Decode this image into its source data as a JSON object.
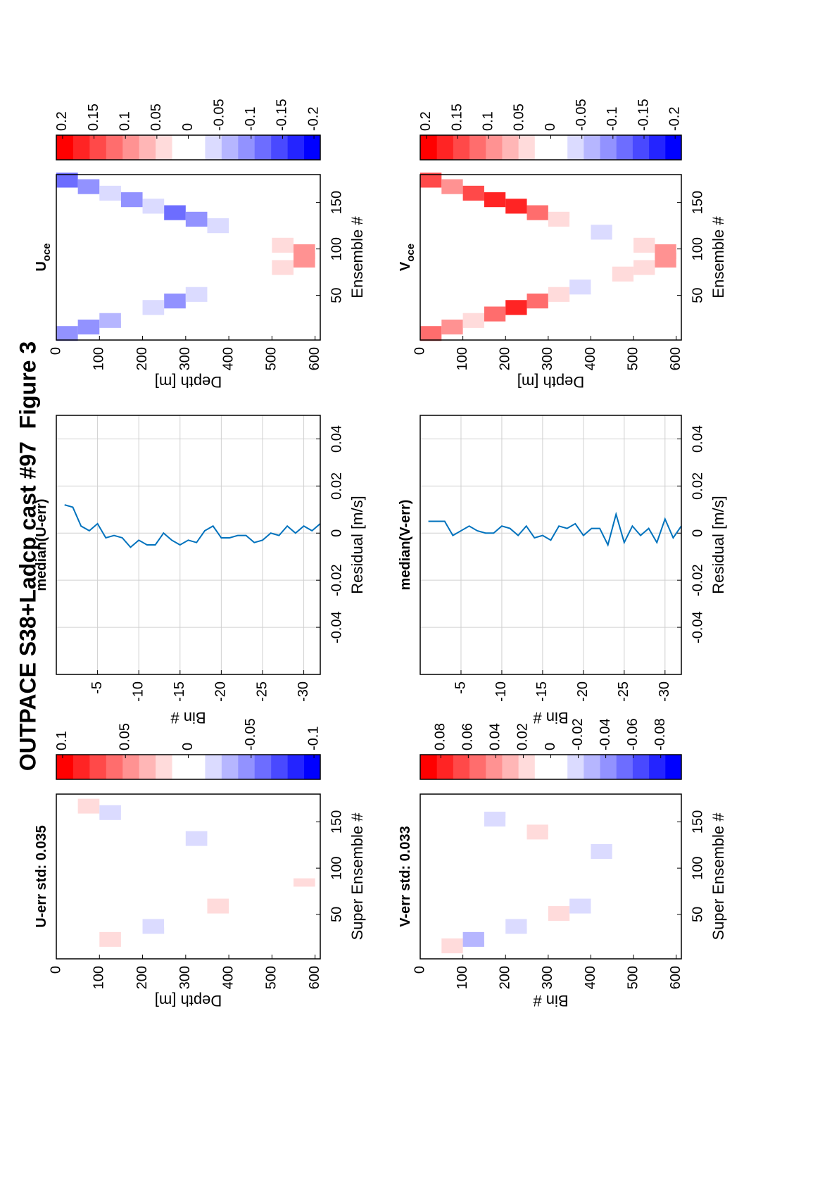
{
  "figure_title": "OUTPACE S38+Ladcp cast #97  Figure 3",
  "chart_data": [
    {
      "type": "heatmap",
      "title": "U-err std: 0.035",
      "xlabel": "Super Ensemble #",
      "ylabel": "Depth [m]",
      "y_edges": [
        0,
        50,
        100,
        150,
        200,
        250,
        300,
        350,
        400,
        450,
        500,
        550,
        600
      ],
      "x_down": [
        9,
        16,
        23,
        30,
        37,
        44,
        51,
        59,
        66,
        73,
        80,
        88
      ],
      "x_up": [
        174,
        167,
        160,
        153,
        146,
        139,
        132,
        125,
        118,
        111,
        104,
        97
      ],
      "down_values": [
        0.01,
        -0.01,
        0.02,
        0.0,
        -0.02,
        0.01,
        -0.01,
        0.02,
        0.0,
        0.01,
        -0.01,
        0.02
      ],
      "up_values": [
        -0.01,
        0.02,
        -0.02,
        0.0,
        -0.01,
        0.01,
        -0.02,
        0.0,
        0.01,
        -0.01,
        0.0,
        0.01
      ],
      "xlim": [
        2,
        180
      ],
      "ylim": [
        0,
        612
      ],
      "ydir": "reverse",
      "xticks": [
        50,
        100,
        150
      ],
      "yticks": [
        0,
        100,
        200,
        300,
        400,
        500,
        600
      ],
      "clim": [
        -0.105,
        0.105
      ],
      "cticks": [
        0.1,
        0.05,
        0,
        -0.05,
        -0.1
      ],
      "colormap": [
        "#0000ff",
        "#ffffff",
        "#ff0000"
      ],
      "levels": 16
    },
    {
      "type": "line",
      "title": "median(U-err)",
      "xlabel": "Residual [m/s]",
      "ylabel": "Bin #",
      "color": "#0072bd",
      "y": [
        -1,
        -2,
        -3,
        -4,
        -5,
        -6,
        -7,
        -8,
        -9,
        -10,
        -11,
        -12,
        -13,
        -14,
        -15,
        -16,
        -17,
        -18,
        -19,
        -20,
        -21,
        -22,
        -23,
        -24,
        -25,
        -26,
        -27,
        -28,
        -29,
        -30,
        -31,
        -32
      ],
      "values": [
        0.012,
        0.011,
        0.003,
        0.001,
        0.004,
        -0.002,
        -0.001,
        -0.002,
        -0.006,
        -0.003,
        -0.005,
        -0.005,
        0.0,
        -0.003,
        -0.005,
        -0.003,
        -0.004,
        0.001,
        0.003,
        -0.002,
        -0.002,
        -0.001,
        -0.001,
        -0.004,
        -0.003,
        0.0,
        -0.001,
        0.003,
        0.0,
        0.003,
        0.001,
        0.004
      ],
      "xlim": [
        -0.06,
        0.05
      ],
      "ylim": [
        -32,
        0
      ],
      "xticks": [
        -0.04,
        -0.02,
        0,
        0.02,
        0.04
      ],
      "yticks": [
        -5,
        -10,
        -15,
        -20,
        -25,
        -30
      ],
      "grid": true
    },
    {
      "type": "heatmap",
      "title": "U",
      "title_sub": "oce",
      "xlabel": "Ensemble #",
      "ylabel": "Depth [m]",
      "y_edges": [
        0,
        50,
        100,
        150,
        200,
        250,
        300,
        350,
        400,
        450,
        500,
        550,
        600
      ],
      "x_down": [
        9,
        16,
        23,
        30,
        37,
        44,
        51,
        59,
        66,
        73,
        80,
        88
      ],
      "x_up": [
        174,
        167,
        160,
        153,
        146,
        139,
        132,
        125,
        118,
        111,
        104,
        97
      ],
      "down_values": [
        -0.1,
        -0.08,
        -0.06,
        0.0,
        -0.03,
        -0.08,
        -0.05,
        -0.02,
        0.0,
        0.02,
        0.05,
        0.1
      ],
      "up_values": [
        -0.12,
        -0.08,
        -0.05,
        -0.08,
        -0.03,
        -0.12,
        -0.1,
        -0.05,
        -0.02,
        0.0,
        0.03,
        0.1
      ],
      "xlim": [
        2,
        180
      ],
      "ylim": [
        0,
        612
      ],
      "ydir": "reverse",
      "xticks": [
        50,
        100,
        150
      ],
      "yticks": [
        0,
        100,
        200,
        300,
        400,
        500,
        600
      ],
      "clim": [
        -0.21,
        0.21
      ],
      "cticks": [
        0.2,
        0.15,
        0.1,
        0.05,
        0,
        -0.05,
        -0.1,
        -0.15,
        -0.2
      ],
      "colormap": [
        "#0000ff",
        "#ffffff",
        "#ff0000"
      ],
      "levels": 16
    },
    {
      "type": "heatmap",
      "title": "V-err std: 0.033",
      "xlabel": "Super Ensemble #",
      "ylabel": "Bin #",
      "y_edges": [
        0,
        50,
        100,
        150,
        200,
        250,
        300,
        350,
        400,
        450,
        500,
        550,
        600
      ],
      "x_down": [
        9,
        16,
        23,
        30,
        37,
        44,
        51,
        59,
        66,
        73,
        80,
        88
      ],
      "x_up": [
        174,
        167,
        160,
        153,
        146,
        139,
        132,
        125,
        118,
        111,
        104,
        97
      ],
      "down_values": [
        0.01,
        0.02,
        -0.03,
        0.01,
        -0.02,
        -0.01,
        0.02,
        -0.02,
        0.0,
        -0.01,
        0.01,
        0.0
      ],
      "up_values": [
        -0.01,
        0.0,
        0.01,
        -0.02,
        -0.01,
        0.02,
        0.0,
        -0.01,
        -0.02,
        0.01,
        0.0,
        -0.01
      ],
      "xlim": [
        2,
        180
      ],
      "ylim": [
        0,
        612
      ],
      "ydir": "reverse",
      "xticks": [
        50,
        100,
        150
      ],
      "yticks": [
        0,
        100,
        200,
        300,
        400,
        500,
        600
      ],
      "clim": [
        -0.095,
        0.095
      ],
      "cticks": [
        0.08,
        0.06,
        0.04,
        0.02,
        0,
        -0.02,
        -0.04,
        -0.06,
        -0.08
      ],
      "colormap": [
        "#0000ff",
        "#ffffff",
        "#ff0000"
      ],
      "levels": 16
    },
    {
      "type": "line",
      "title": "median(V-err)",
      "xlabel": "Residual [m/s]",
      "ylabel": "Bin #",
      "color": "#0072bd",
      "y": [
        -1,
        -2,
        -3,
        -4,
        -5,
        -6,
        -7,
        -8,
        -9,
        -10,
        -11,
        -12,
        -13,
        -14,
        -15,
        -16,
        -17,
        -18,
        -19,
        -20,
        -21,
        -22,
        -23,
        -24,
        -25,
        -26,
        -27,
        -28,
        -29,
        -30,
        -31,
        -32
      ],
      "values": [
        0.005,
        0.005,
        0.005,
        -0.001,
        0.001,
        0.003,
        0.001,
        0.0,
        0.0,
        0.003,
        0.002,
        -0.001,
        0.003,
        -0.002,
        -0.001,
        -0.003,
        0.003,
        0.002,
        0.004,
        -0.001,
        0.002,
        0.002,
        -0.005,
        0.008,
        -0.004,
        0.003,
        -0.001,
        0.002,
        -0.004,
        0.006,
        -0.002,
        0.003
      ],
      "xlim": [
        -0.06,
        0.05
      ],
      "ylim": [
        -32,
        0
      ],
      "xticks": [
        -0.04,
        -0.02,
        0,
        0.02,
        0.04
      ],
      "yticks": [
        -5,
        -10,
        -15,
        -20,
        -25,
        -30
      ],
      "grid": true
    },
    {
      "type": "heatmap",
      "title": "V",
      "title_sub": "oce",
      "xlabel": "Ensemble #",
      "ylabel": "Depth [m]",
      "y_edges": [
        0,
        50,
        100,
        150,
        200,
        250,
        300,
        350,
        400,
        450,
        500,
        550,
        600
      ],
      "x_down": [
        9,
        16,
        23,
        30,
        37,
        44,
        51,
        59,
        66,
        73,
        80,
        88
      ],
      "x_up": [
        174,
        167,
        160,
        153,
        146,
        139,
        132,
        125,
        118,
        111,
        104,
        97
      ],
      "down_values": [
        0.12,
        0.1,
        0.05,
        0.13,
        0.17,
        0.12,
        0.03,
        -0.03,
        -0.02,
        0.03,
        0.05,
        0.08
      ],
      "up_values": [
        0.15,
        0.1,
        0.15,
        0.18,
        0.17,
        0.12,
        0.05,
        -0.02,
        -0.04,
        0.02,
        0.05,
        0.1
      ],
      "xlim": [
        2,
        180
      ],
      "ylim": [
        0,
        612
      ],
      "ydir": "reverse",
      "xticks": [
        50,
        100,
        150
      ],
      "yticks": [
        0,
        100,
        200,
        300,
        400,
        500,
        600
      ],
      "clim": [
        -0.21,
        0.21
      ],
      "cticks": [
        0.2,
        0.15,
        0.1,
        0.05,
        0,
        -0.05,
        -0.1,
        -0.15,
        -0.2
      ],
      "colormap": [
        "#0000ff",
        "#ffffff",
        "#ff0000"
      ],
      "levels": 16
    }
  ]
}
